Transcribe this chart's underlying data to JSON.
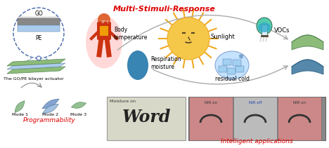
{
  "title": "Multi-Stimuli-Response",
  "title_color": "#dd0000",
  "title_fontsize": 8,
  "bg_color": "#ffffff",
  "labels": {
    "GO": "GO",
    "PE": "PE",
    "bilayer": "The GO/PE bilayer actuator",
    "body_temp": "Body\ntemperature",
    "sunlight": "Sunlight",
    "vocs": "VOCs",
    "respiration": "Respiration\nmoisture",
    "residual": "residual cold",
    "mode1": "Mode 1",
    "mode2": "Mode 2",
    "mode3": "Mode 3",
    "programmability": "Programmability",
    "moisture_on": "Moisture on",
    "nir_on1": "NIR on",
    "nir_off": "NIR off",
    "nir_on2": "NIR on",
    "intelligent": "Intelligent applications"
  },
  "colors": {
    "red_label": "#dd0000",
    "blue_circle": "#4466aa",
    "green_sheet": "#8dbb7a",
    "blue_sheet": "#8ab4cc",
    "arrow_gray": "#aaaaaa",
    "sun_yellow": "#f5c84a",
    "sun_orange": "#f0a820",
    "pink_bg": "#f5aaaa",
    "teal_human": "#cc3311",
    "teal_breath": "#2277aa",
    "ribbon_green": "#88bb88",
    "ribbon_blue": "#7799cc",
    "ice_blue": "#aaccee",
    "flask_green": "#44bb99",
    "actuator_green": "#8dbb7a",
    "actuator_blue": "#5588aa"
  }
}
